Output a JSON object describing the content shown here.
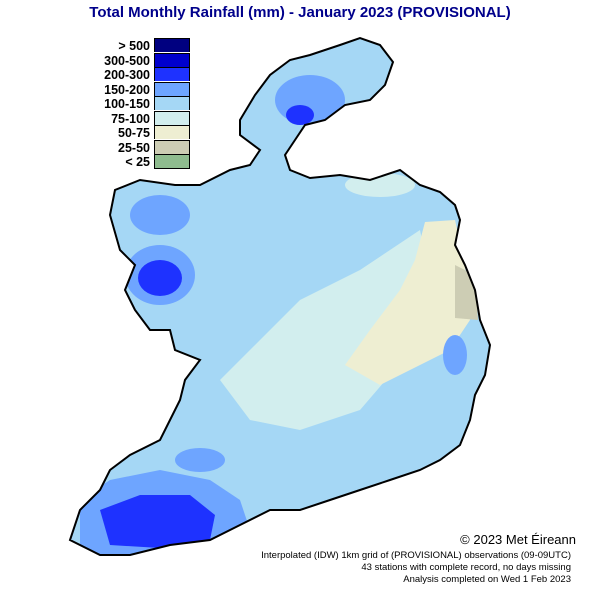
{
  "title": "Total Monthly Rainfall (mm) - January 2023 (PROVISIONAL)",
  "legend": [
    {
      "label": "> 500",
      "color": "#000080"
    },
    {
      "label": "300-500",
      "color": "#0000cd"
    },
    {
      "label": "200-300",
      "color": "#1e32ff"
    },
    {
      "label": "150-200",
      "color": "#6ea5ff"
    },
    {
      "label": "100-150",
      "color": "#a5d7f5"
    },
    {
      "label": "75-100",
      "color": "#d2eeee"
    },
    {
      "label": "50-75",
      "color": "#eeeed2"
    },
    {
      "label": "25-50",
      "color": "#cdcdb4"
    },
    {
      "label": "< 25",
      "color": "#8fbc8f"
    }
  ],
  "footer": {
    "copyright": "© 2023 Met Éireann",
    "line1": "Interpolated (IDW) 1km grid of (PROVISIONAL) observations (09-09UTC)",
    "line2": "43 stations with complete record, no days missing",
    "line3": "Analysis completed on Wed  1 Feb 2023"
  }
}
